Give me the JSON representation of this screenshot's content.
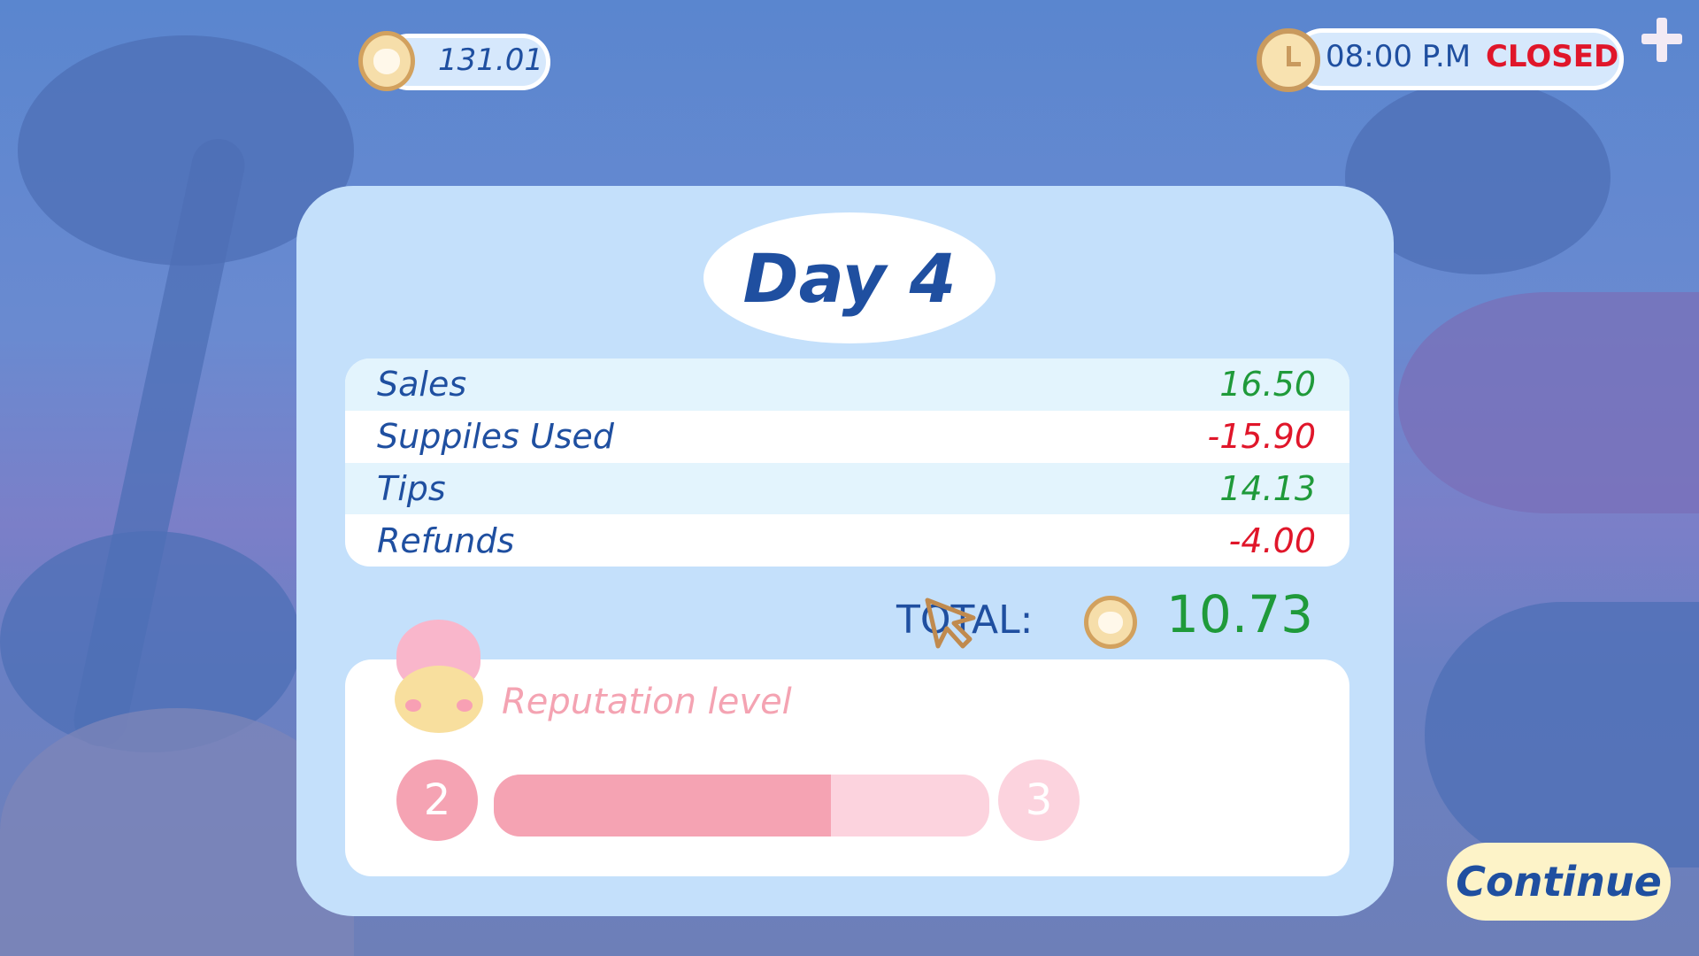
{
  "hud": {
    "coins": "131.01",
    "coin_icon": "bear-coin-icon",
    "time": "08:00 P.M",
    "status": "CLOSED",
    "add_icon": "plus-icon"
  },
  "summary": {
    "title": "Day 4",
    "rows": [
      {
        "label": "Sales",
        "value": "16.50",
        "sign": "positive"
      },
      {
        "label": "Suppiles Used",
        "value": "-15.90",
        "sign": "negative"
      },
      {
        "label": "Tips",
        "value": "14.13",
        "sign": "positive"
      },
      {
        "label": "Refunds",
        "value": "-4.00",
        "sign": "negative"
      }
    ],
    "total_label": "TOTAL:",
    "total_value": "10.73"
  },
  "reputation": {
    "label": "Reputation level",
    "current_level": "2",
    "next_level": "3",
    "progress": 0.68
  },
  "continue_label": "Continue",
  "colors": {
    "panel": "#c4e0fb",
    "text_blue": "#1f4fa0",
    "positive": "#1f9a3a",
    "negative": "#e0162a",
    "rep_pink": "#f5a3b3",
    "rep_light": "#fcd3de",
    "button": "#fdf3c8"
  }
}
